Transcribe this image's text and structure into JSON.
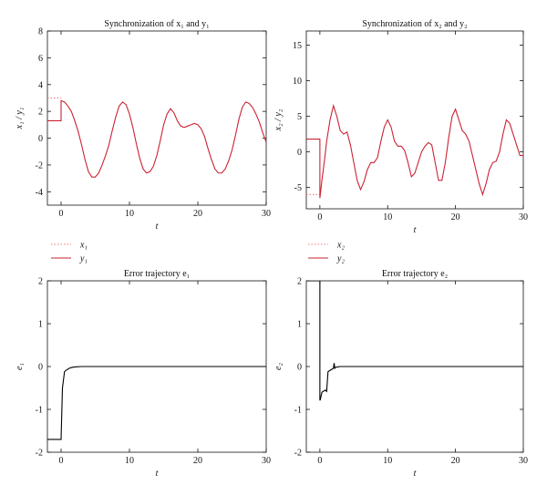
{
  "colors": {
    "x_series": "#ee7777",
    "y_series": "#cc2233",
    "error": "#000000",
    "axis": "#111111"
  },
  "chart_data": [
    {
      "id": "p1",
      "type": "line",
      "title": "Synchronization of x₁ and y₁",
      "xlabel": "t",
      "ylabel": "x₁ / y₁",
      "xlim": [
        -2,
        30
      ],
      "ylim": [
        -5,
        8
      ],
      "xticks": [
        0,
        10,
        20,
        30
      ],
      "yticks": [
        -4,
        -2,
        0,
        2,
        4,
        6,
        8
      ],
      "legend": "below",
      "series": [
        {
          "name": "x₁",
          "style": "dotted",
          "color": "#ee7777",
          "x": [
            -2,
            0
          ],
          "y": [
            3,
            3
          ]
        },
        {
          "name": "y₁",
          "style": "solid",
          "color": "#cc2233",
          "x": [
            -2,
            0,
            0,
            0.5,
            1,
            1.5,
            2,
            2.5,
            3,
            3.5,
            4,
            4.5,
            5,
            5.5,
            6,
            6.5,
            7,
            7.5,
            8,
            8.5,
            9,
            9.5,
            10,
            10.5,
            11,
            11.5,
            12,
            12.5,
            13,
            13.5,
            14,
            14.5,
            15,
            15.5,
            16,
            16.5,
            17,
            17.5,
            18,
            18.5,
            19,
            19.5,
            20,
            20.5,
            21,
            21.5,
            22,
            22.5,
            23,
            23.5,
            24,
            24.5,
            25,
            25.5,
            26,
            26.5,
            27,
            27.5,
            28,
            28.5,
            29,
            29.5,
            30
          ],
          "y": [
            1.3,
            1.3,
            2.8,
            2.7,
            2.4,
            2.0,
            1.3,
            0.5,
            -0.5,
            -1.6,
            -2.5,
            -2.9,
            -2.9,
            -2.6,
            -2.0,
            -1.3,
            -0.5,
            0.6,
            1.6,
            2.4,
            2.7,
            2.5,
            1.8,
            0.8,
            -0.4,
            -1.5,
            -2.3,
            -2.6,
            -2.5,
            -2.1,
            -1.3,
            -0.2,
            1.0,
            1.8,
            2.2,
            1.9,
            1.3,
            0.9,
            0.8,
            0.9,
            1.0,
            1.1,
            1.0,
            0.7,
            0.1,
            -0.8,
            -1.6,
            -2.3,
            -2.6,
            -2.6,
            -2.3,
            -1.7,
            -0.9,
            0.2,
            1.4,
            2.3,
            2.7,
            2.6,
            2.3,
            1.8,
            1.2,
            0.4,
            -0.3
          ]
        }
      ]
    },
    {
      "id": "p2",
      "type": "line",
      "title": "Synchronization of x₂ and y₂",
      "xlabel": "t",
      "ylabel": "x₂ / y₂",
      "xlim": [
        -2,
        30
      ],
      "ylim": [
        -8,
        17
      ],
      "xticks": [
        0,
        10,
        20,
        30
      ],
      "yticks": [
        -5,
        0,
        5,
        10,
        15
      ],
      "legend": "below",
      "series": [
        {
          "name": "x₂",
          "style": "dotted",
          "color": "#ee7777",
          "x": [
            -2,
            0
          ],
          "y": [
            -6,
            -6
          ]
        },
        {
          "name": "y₂",
          "style": "solid",
          "color": "#cc2233",
          "x": [
            -2,
            0,
            0,
            0.3,
            0.7,
            1,
            1.5,
            2,
            2.5,
            3,
            3.5,
            4,
            4.5,
            5,
            5.5,
            6,
            6.5,
            7,
            7.5,
            8,
            8.5,
            9,
            9.5,
            10,
            10.5,
            11,
            11.5,
            12,
            12.5,
            13,
            13.5,
            14,
            14.5,
            15,
            15.5,
            16,
            16.5,
            17,
            17.5,
            18,
            18.5,
            19,
            19.5,
            20,
            20.5,
            21,
            21.5,
            22,
            22.5,
            23,
            23.5,
            24,
            24.5,
            25,
            25.5,
            26,
            26.5,
            27,
            27.5,
            28,
            28.5,
            29,
            29.5,
            30
          ],
          "y": [
            1.8,
            1.8,
            -6.5,
            -4.0,
            -1.0,
            1.5,
            4.5,
            6.5,
            5.0,
            3.0,
            2.5,
            2.8,
            1.0,
            -1.5,
            -4.0,
            -5.3,
            -4.2,
            -2.5,
            -1.5,
            -1.5,
            -0.8,
            1.5,
            3.5,
            4.5,
            3.5,
            1.5,
            0.8,
            0.8,
            0.2,
            -1.5,
            -3.5,
            -3.0,
            -1.5,
            0.0,
            0.8,
            1.3,
            1.0,
            -1.5,
            -4.0,
            -4.0,
            -1.5,
            2.0,
            5.0,
            6.0,
            4.5,
            3.0,
            2.5,
            1.5,
            -0.5,
            -2.5,
            -4.5,
            -6.0,
            -4.5,
            -2.5,
            -1.5,
            -1.3,
            0.0,
            2.5,
            4.5,
            4.0,
            2.5,
            1.0,
            -0.5,
            -0.5
          ]
        }
      ]
    },
    {
      "id": "p3",
      "type": "line",
      "title": "Error trajectory e₁",
      "xlabel": "t",
      "ylabel": "e₁",
      "xlim": [
        -2,
        30
      ],
      "ylim": [
        -2,
        2
      ],
      "xticks": [
        0,
        10,
        20,
        30
      ],
      "yticks": [
        -2,
        -1,
        0,
        1,
        2
      ],
      "series": [
        {
          "name": "e₁",
          "style": "solid",
          "color": "#000000",
          "x": [
            -2,
            -0.1,
            0,
            0.2,
            0.5,
            0.8,
            1.2,
            1.6,
            2,
            3,
            4,
            30
          ],
          "y": [
            -1.7,
            -1.7,
            -1.7,
            -0.5,
            -0.12,
            -0.08,
            -0.04,
            -0.02,
            -0.01,
            0,
            0,
            0
          ]
        }
      ]
    },
    {
      "id": "p4",
      "type": "line",
      "title": "Error trajectory e₂",
      "xlabel": "t",
      "ylabel": "e₂",
      "xlim": [
        -2,
        30
      ],
      "ylim": [
        -2,
        2
      ],
      "xticks": [
        0,
        10,
        20,
        30
      ],
      "yticks": [
        -2,
        -1,
        0,
        1,
        2
      ],
      "series": [
        {
          "name": "e₂",
          "style": "solid",
          "color": "#000000",
          "x": [
            -2,
            0,
            0,
            0.05,
            0.3,
            0.8,
            1.0,
            1.2,
            1.6,
            2.0,
            2.1,
            2.2,
            2.3,
            2.6,
            3,
            4,
            30
          ],
          "y": [
            2.0,
            2.0,
            -0.78,
            -0.78,
            -0.6,
            -0.55,
            -0.58,
            -0.12,
            -0.08,
            -0.04,
            0.08,
            -0.04,
            -0.02,
            -0.01,
            0,
            0,
            0
          ]
        }
      ]
    }
  ]
}
